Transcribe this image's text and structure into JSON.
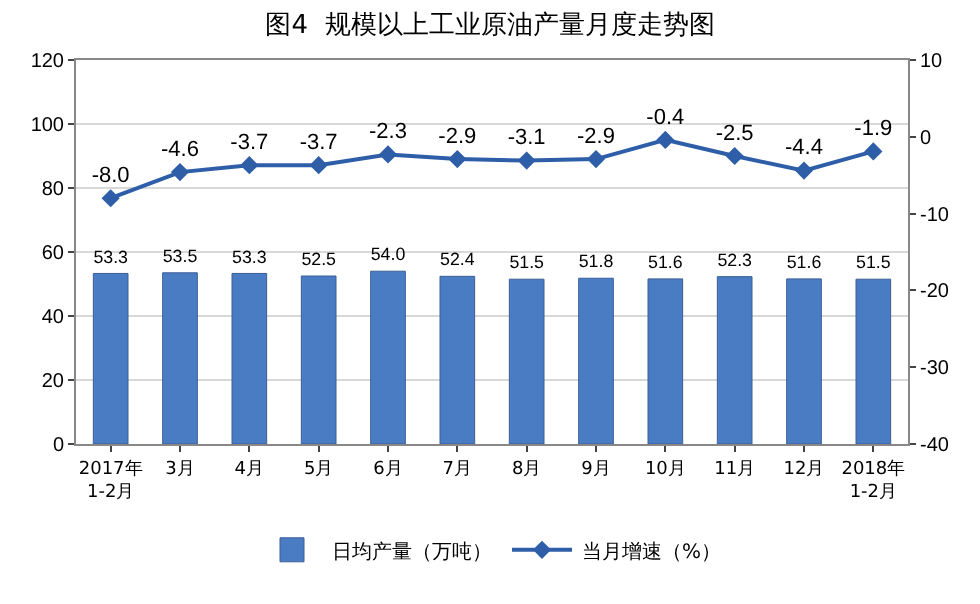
{
  "chart_data": {
    "type": "bar",
    "title": "图4  规模以上工业原油产量月度走势图",
    "categories": [
      "2017年\n1-2月",
      "3月",
      "4月",
      "5月",
      "6月",
      "7月",
      "8月",
      "9月",
      "10月",
      "11月",
      "12月",
      "2018年\n1-2月"
    ],
    "series": [
      {
        "name": "日均产量（万吨）",
        "color": "#4a7cc4",
        "values": [
          53.3,
          53.5,
          53.3,
          52.5,
          54.0,
          52.4,
          51.5,
          51.8,
          51.6,
          52.3,
          51.6,
          51.5
        ],
        "value_labels": [
          "53.3",
          "53.5",
          "53.3",
          "52.5",
          "54.0",
          "52.4",
          "51.5",
          "51.8",
          "51.6",
          "52.3",
          "51.6",
          "51.5"
        ]
      },
      {
        "name": "当月增速（%）",
        "type": "line",
        "axis": "y2",
        "color": "#2e5ea8",
        "marker": "diamond",
        "values": [
          -8.0,
          -4.6,
          -3.7,
          -3.7,
          -2.3,
          -2.9,
          -3.1,
          -2.9,
          -0.4,
          -2.5,
          -4.4,
          -1.9
        ],
        "value_labels": [
          "-8.0",
          "-4.6",
          "-3.7",
          "-3.7",
          "-2.3",
          "-2.9",
          "-3.1",
          "-2.9",
          "-0.4",
          "-2.5",
          "-4.4",
          "-1.9"
        ]
      }
    ],
    "ylim": [
      0,
      120
    ],
    "yticks": [
      0,
      20,
      40,
      60,
      80,
      100,
      120
    ],
    "y2lim": [
      -40,
      10
    ],
    "y2ticks": [
      -40,
      -30,
      -20,
      -10,
      0,
      10
    ],
    "grid": "y",
    "legend": "bottom"
  }
}
